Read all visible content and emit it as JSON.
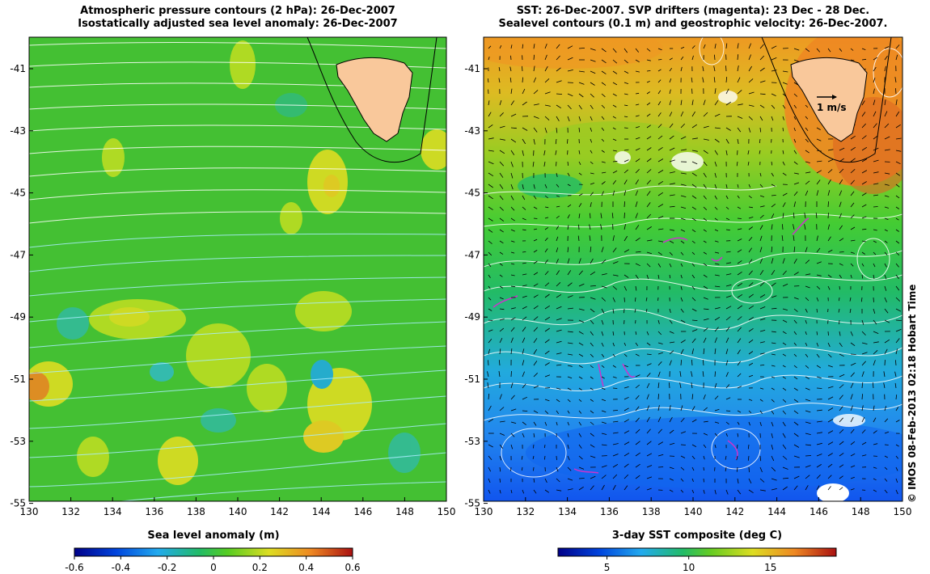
{
  "left_panel": {
    "title_line1": "Atmospheric pressure contours (2 hPa): 26-Dec-2007",
    "title_line2": "Isostatically adjusted sea level anomaly: 26-Dec-2007",
    "colorbar_label": "Sea level anomaly (m)",
    "colorbar_ticks": [
      "-0.6",
      "-0.4",
      "-0.2",
      "0",
      "0.2",
      "0.4",
      "0.6"
    ]
  },
  "right_panel": {
    "title_line1": "SST: 26-Dec-2007. SVP drifters (magenta): 23 Dec - 28 Dec.",
    "title_line2": "Sealevel contours (0.1 m) and geostrophic velocity: 26-Dec-2007.",
    "colorbar_label": "3-day SST composite (deg C)",
    "colorbar_ticks": [
      "5",
      "10",
      "15"
    ],
    "scale_label": "1 m/s"
  },
  "axes": {
    "lon_ticks": [
      "130",
      "132",
      "134",
      "136",
      "138",
      "140",
      "142",
      "144",
      "146",
      "148",
      "150"
    ],
    "lat_ticks": [
      "-41",
      "-43",
      "-45",
      "-47",
      "-49",
      "-51",
      "-53",
      "-55"
    ]
  },
  "credit": "© IMOS 08-Feb-2013 02:18 Hobart Time",
  "colors": {
    "land": "#f9c89b",
    "contour": "#ffffff",
    "drifter": "#cc33cc"
  }
}
